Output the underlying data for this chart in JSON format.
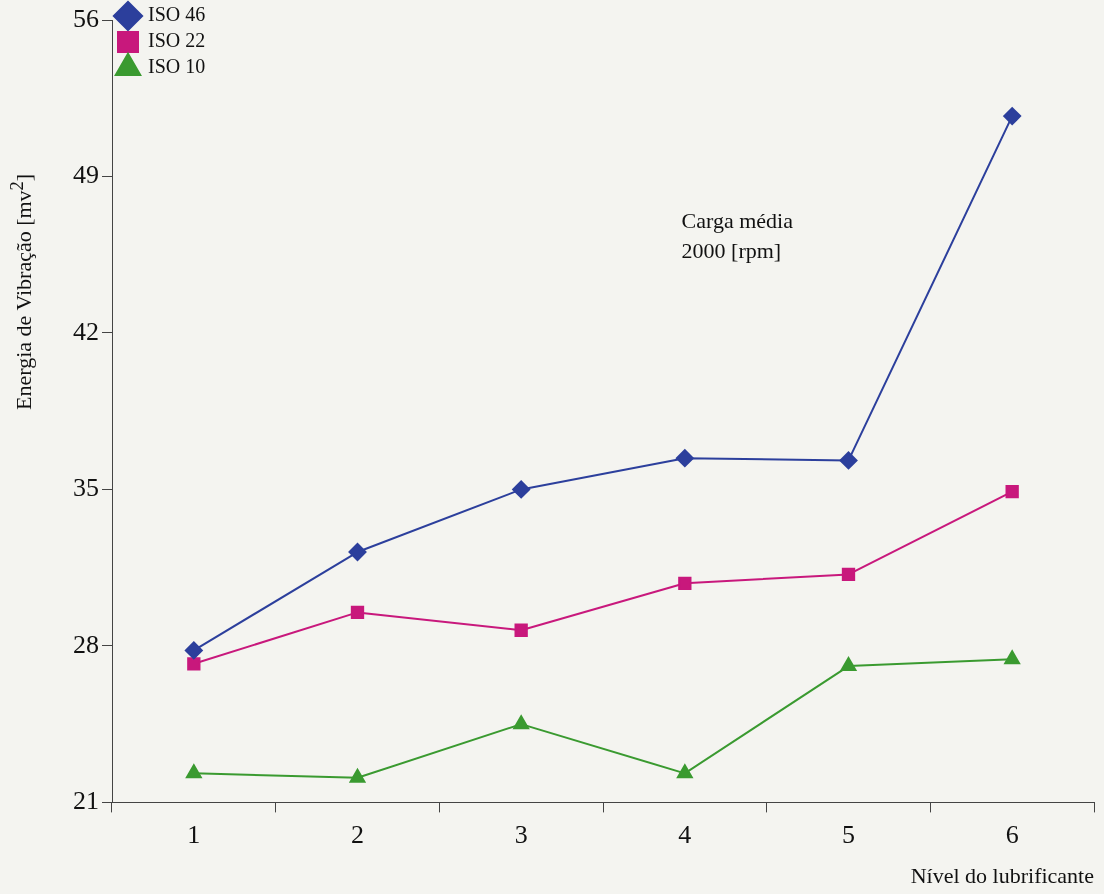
{
  "chart_data": {
    "type": "line",
    "xlabel": "Nível do lubrificante",
    "ylabel": "Energia de Vibração [mv$^{2}$]",
    "categories": [
      "1",
      "2",
      "3",
      "4",
      "5",
      "6"
    ],
    "series": [
      {
        "name": "ISO 46",
        "color": "#2c3f9c",
        "marker": "diamond",
        "values": [
          27.8,
          32.2,
          35.0,
          36.4,
          36.3,
          51.7
        ]
      },
      {
        "name": "ISO 22",
        "color": "#c8187c",
        "marker": "square",
        "values": [
          27.2,
          29.5,
          28.7,
          30.8,
          31.2,
          34.9
        ]
      },
      {
        "name": "ISO 10",
        "color": "#3a9a30",
        "marker": "triangle",
        "values": [
          22.3,
          22.1,
          24.5,
          22.3,
          27.1,
          27.4
        ]
      }
    ],
    "ylim": [
      21,
      56
    ],
    "yticks": [
      21,
      28,
      35,
      42,
      49,
      56
    ],
    "grid": false,
    "legend": "top left",
    "line_style": "solid",
    "annotations": [
      "Carga média",
      "2000 [rpm]"
    ]
  }
}
